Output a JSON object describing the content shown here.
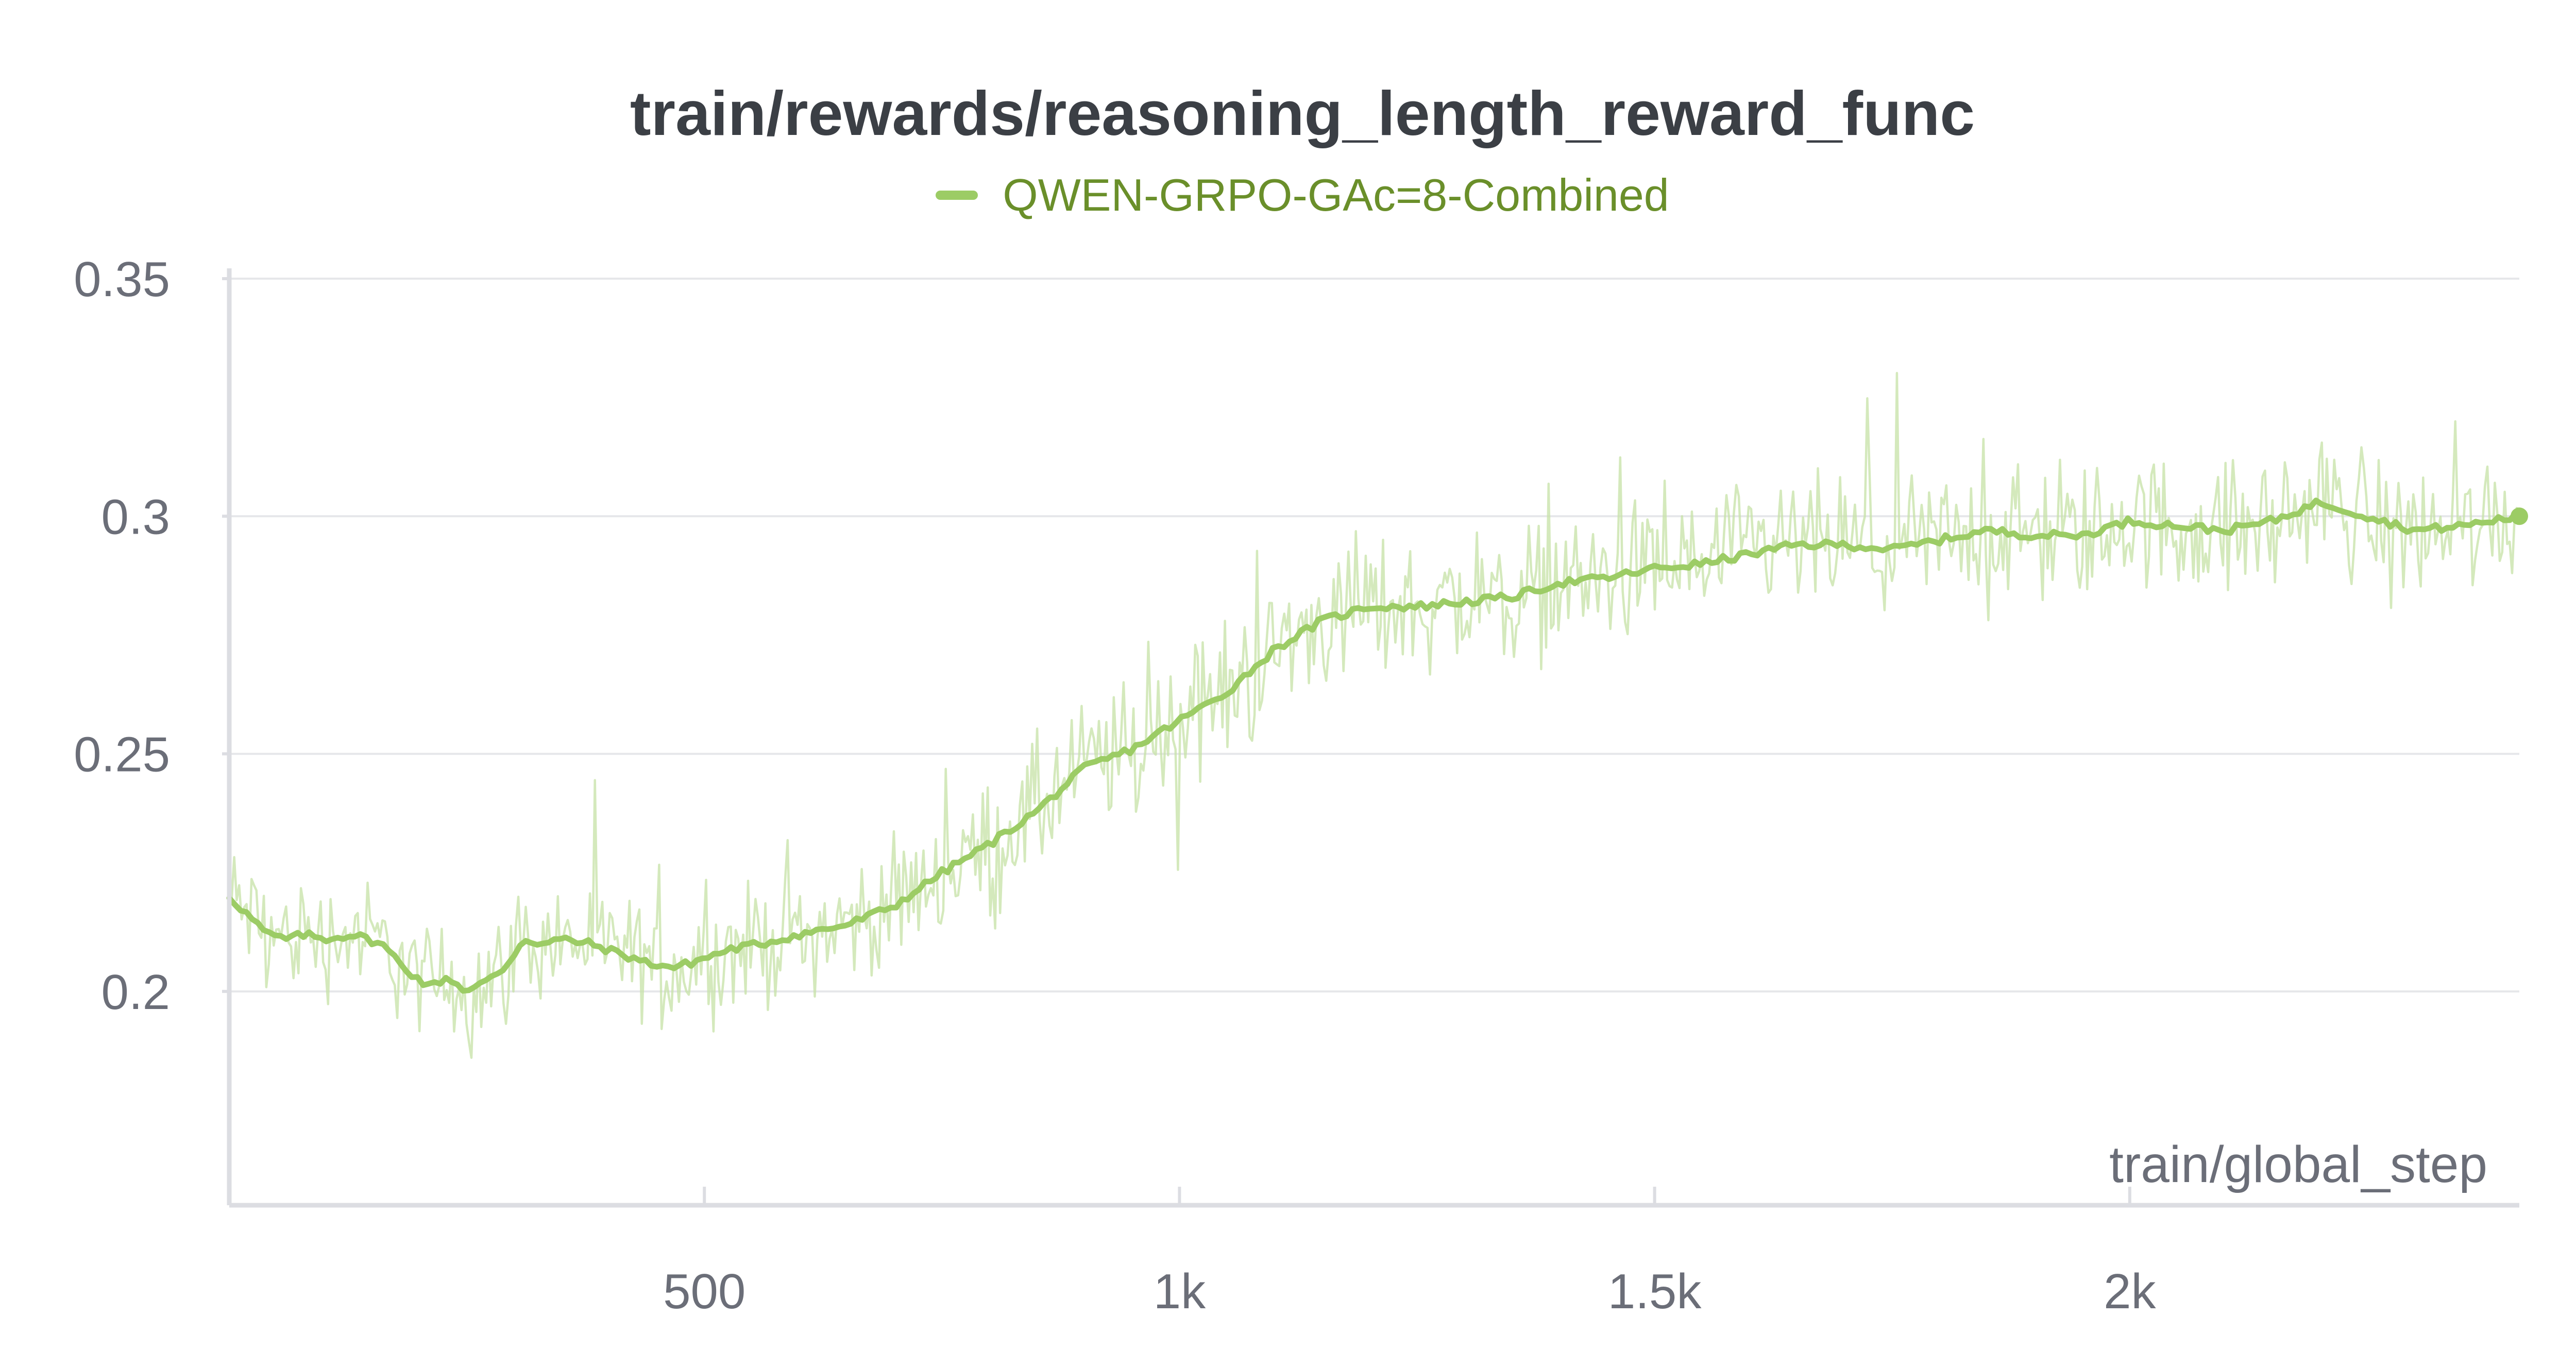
{
  "chart_data": {
    "type": "line",
    "title": "train/rewards/reasoning_length_reward_func",
    "xlabel": "train/global_step",
    "ylabel": "",
    "xlim": [
      0,
      2410
    ],
    "ylim": [
      0.155,
      0.35
    ],
    "x_ticks": [
      {
        "value": 500,
        "label": "500"
      },
      {
        "value": 1000,
        "label": "1k"
      },
      {
        "value": 1500,
        "label": "1.5k"
      },
      {
        "value": 2000,
        "label": "2k"
      }
    ],
    "y_ticks": [
      {
        "value": 0.2,
        "label": "0.2"
      },
      {
        "value": 0.25,
        "label": "0.25"
      },
      {
        "value": 0.3,
        "label": "0.3"
      },
      {
        "value": 0.35,
        "label": "0.35"
      }
    ],
    "grid": "horizontal",
    "legend_position": "top-center",
    "series": [
      {
        "name": "QWEN-GRPO-GAc=8-Combined",
        "color": "#9ccc65",
        "raw_color": "#c5e1a5",
        "smoothed": {
          "x": [
            0,
            20,
            40,
            60,
            80,
            100,
            130,
            160,
            190,
            210,
            230,
            250,
            270,
            290,
            310,
            330,
            350,
            380,
            410,
            440,
            470,
            500,
            530,
            560,
            600,
            650,
            700,
            750,
            800,
            850,
            900,
            950,
            1000,
            1050,
            1100,
            1150,
            1200,
            1250,
            1300,
            1350,
            1400,
            1450,
            1500,
            1550,
            1600,
            1650,
            1700,
            1750,
            1800,
            1850,
            1900,
            1950,
            2000,
            2050,
            2100,
            2150,
            2200,
            2250,
            2300,
            2350,
            2410
          ],
          "y": [
            0.22,
            0.216,
            0.212,
            0.211,
            0.212,
            0.211,
            0.212,
            0.21,
            0.204,
            0.201,
            0.203,
            0.2,
            0.202,
            0.205,
            0.211,
            0.21,
            0.211,
            0.21,
            0.208,
            0.206,
            0.205,
            0.207,
            0.209,
            0.21,
            0.212,
            0.214,
            0.218,
            0.225,
            0.231,
            0.238,
            0.247,
            0.251,
            0.257,
            0.263,
            0.272,
            0.278,
            0.281,
            0.281,
            0.282,
            0.283,
            0.286,
            0.287,
            0.289,
            0.29,
            0.292,
            0.294,
            0.294,
            0.293,
            0.295,
            0.297,
            0.296,
            0.296,
            0.299,
            0.298,
            0.297,
            0.299,
            0.303,
            0.3,
            0.297,
            0.298,
            0.3
          ]
        },
        "last_value": 0.3
      }
    ]
  }
}
